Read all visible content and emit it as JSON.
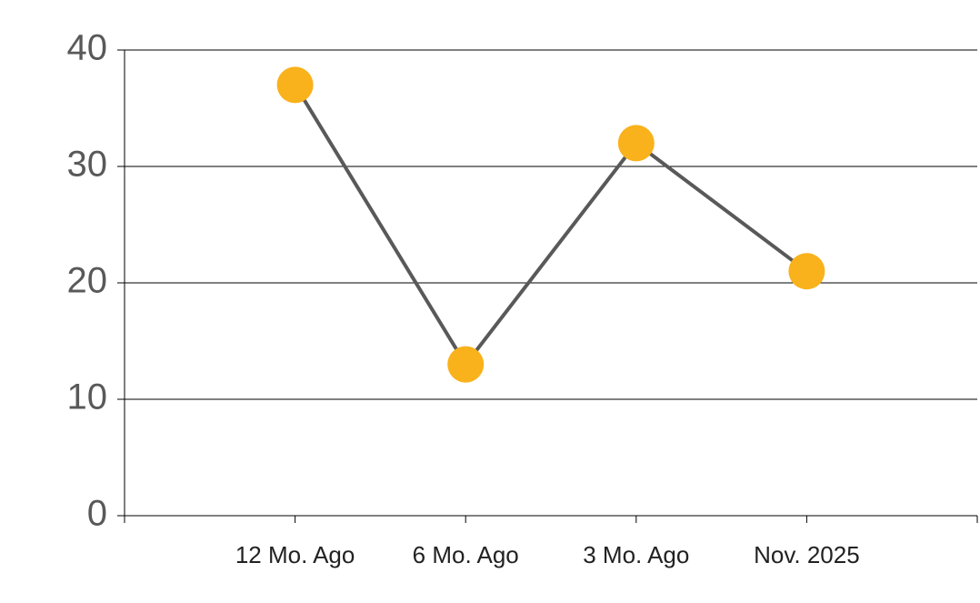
{
  "chart_data": {
    "type": "line",
    "categories": [
      "12 Mo. Ago",
      "6 Mo. Ago",
      "3 Mo. Ago",
      "Nov. 2025"
    ],
    "values": [
      37,
      13,
      32,
      21
    ],
    "color": "#595959",
    "marker_color": "#f9b21b",
    "ylim": [
      0,
      40
    ],
    "yticks": [
      0,
      10,
      20,
      30,
      40
    ],
    "grid": true
  }
}
